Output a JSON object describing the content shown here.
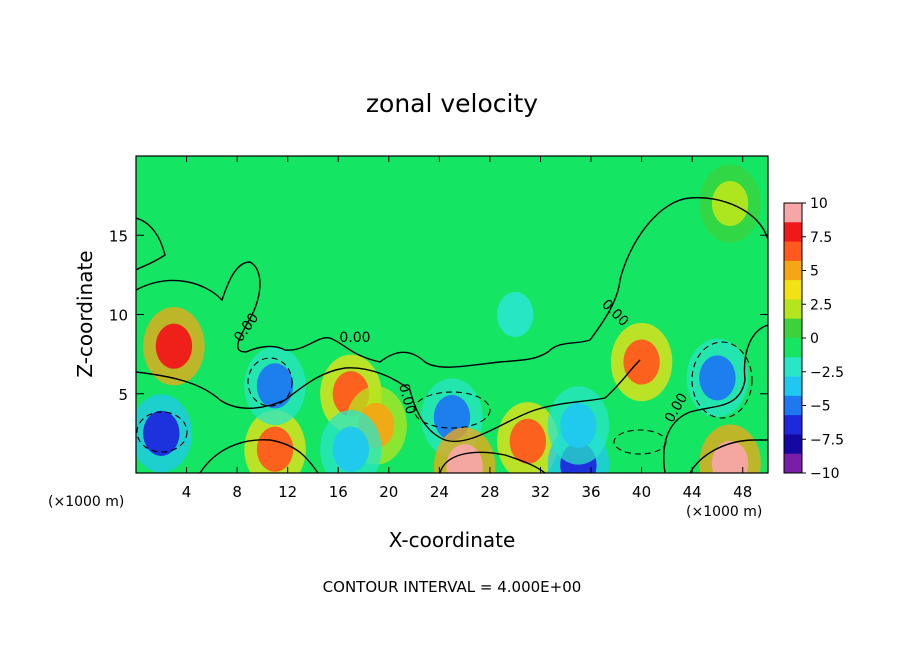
{
  "chart_data": {
    "type": "heatmap",
    "title": "zonal velocity",
    "xlabel": "X-coordinate",
    "ylabel": "Z-coordinate",
    "x_unit_left": "(×1000 m)",
    "x_unit_right": "(×1000 m)",
    "xlim": [
      0,
      50
    ],
    "ylim": [
      0,
      20
    ],
    "x_ticks": [
      "4",
      "8",
      "12",
      "16",
      "20",
      "24",
      "28",
      "32",
      "36",
      "40",
      "44",
      "48"
    ],
    "y_ticks": [
      "5",
      "10",
      "15"
    ],
    "colorbar": {
      "levels": [
        10,
        7.5,
        5,
        2.5,
        0,
        -2.5,
        -5,
        -7.5,
        -10
      ],
      "labels": [
        "10",
        "7.5",
        "5",
        "2.5",
        "0",
        "−2.5",
        "−5",
        "−7.5",
        "−10"
      ],
      "colors": [
        "#f6a6a6",
        "#f01818",
        "#ff5a1e",
        "#f5a614",
        "#f2e214",
        "#b4e61e",
        "#3cd23c",
        "#14e664",
        "#28e6c8",
        "#20c8f0",
        "#1e78f0",
        "#1e28dc",
        "#1408a0",
        "#7a1eaa"
      ]
    },
    "background_value": -1,
    "features": [
      {
        "x": 3,
        "z": 8,
        "value": 8
      },
      {
        "x": 2,
        "z": 2.5,
        "value": -6
      },
      {
        "x": 11,
        "z": 1.5,
        "value": 6
      },
      {
        "x": 11,
        "z": 5.5,
        "value": -4.5
      },
      {
        "x": 17,
        "z": 5,
        "value": 7
      },
      {
        "x": 19,
        "z": 3,
        "value": 5
      },
      {
        "x": 17,
        "z": 1.5,
        "value": -4
      },
      {
        "x": 25,
        "z": 3.5,
        "value": -4.5
      },
      {
        "x": 26,
        "z": 0.4,
        "value": 10
      },
      {
        "x": 31,
        "z": 2,
        "value": 6
      },
      {
        "x": 35,
        "z": 0.5,
        "value": -7
      },
      {
        "x": 35,
        "z": 3,
        "value": -3
      },
      {
        "x": 40,
        "z": 7,
        "value": 6
      },
      {
        "x": 47,
        "z": 0.6,
        "value": 9
      },
      {
        "x": 46,
        "z": 6,
        "value": -5
      },
      {
        "x": 47,
        "z": 17,
        "value": 1.5
      },
      {
        "x": 30,
        "z": 10,
        "value": -2.5
      }
    ],
    "contour_labels": [
      "0.00",
      "0.00",
      "0.00",
      "0.00",
      "0.00"
    ],
    "footer": "CONTOUR INTERVAL = 4.000E+00"
  }
}
